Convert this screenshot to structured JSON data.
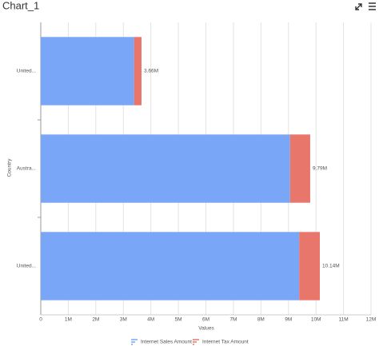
{
  "chart_data": {
    "type": "bar",
    "orientation": "horizontal",
    "stacked": true,
    "title": "Chart_1",
    "x_label": "Values",
    "y_label": "Country",
    "categories": [
      "United...",
      "Austra...",
      "United..."
    ],
    "series": [
      {
        "name": "Internet Sales Amount",
        "color": "#79a6f6",
        "values": [
          3390000,
          9060000,
          9390000
        ]
      },
      {
        "name": "Internet Tax Amount",
        "color": "#e8766b",
        "values": [
          270000,
          730000,
          750000
        ]
      }
    ],
    "totals": [
      3660000,
      9790000,
      10140000
    ],
    "total_labels": [
      "3.66M",
      "9.79M",
      "10.14M"
    ],
    "xlim": [
      0,
      12000000
    ],
    "xticks": [
      0,
      {
        "value": 1000000,
        "label": "1M"
      },
      {
        "value": 2000000,
        "label": "2M"
      },
      {
        "value": 3000000,
        "label": "3M"
      },
      {
        "value": 4000000,
        "label": "4M"
      },
      {
        "value": 5000000,
        "label": "5M"
      },
      {
        "value": 6000000,
        "label": "6M"
      },
      {
        "value": 7000000,
        "label": "7M"
      },
      {
        "value": 8000000,
        "label": "8M"
      },
      {
        "value": 9000000,
        "label": "9M"
      },
      {
        "value": 10000000,
        "label": "10M"
      },
      {
        "value": 11000000,
        "label": "11M"
      },
      {
        "value": 12000000,
        "label": "12M"
      }
    ],
    "grid": true,
    "legend": "bottom"
  }
}
